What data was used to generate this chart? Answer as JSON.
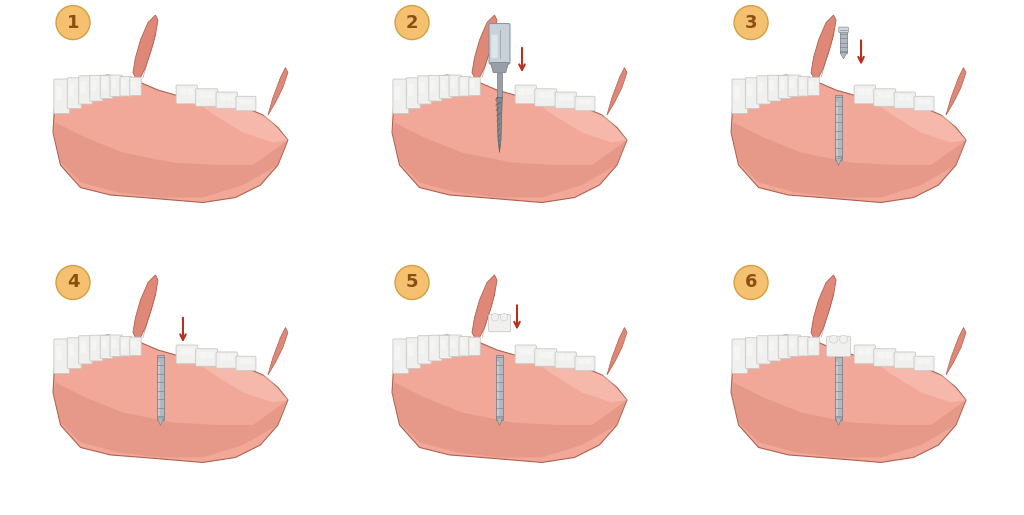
{
  "background_color": "#ffffff",
  "jaw_fill": "#f2a898",
  "jaw_fill_dark": "#d98878",
  "jaw_fill_light": "#f9c8be",
  "jaw_fill_mid": "#e89888",
  "gum_flap_fill": "#e08878",
  "tooth_fill": "#f0f0ee",
  "tooth_stroke": "#c8c8c8",
  "outline_color": "#b06050",
  "implant_color": "#b0b8c0",
  "implant_dark": "#787880",
  "implant_light": "#d0d8e0",
  "arrow_color": "#b83020",
  "badge_bg": "#f5c070",
  "badge_text": "#8b5010",
  "drill_head": "#c8d0d8",
  "drill_body": "#989fa8",
  "drill_dark": "#585860"
}
